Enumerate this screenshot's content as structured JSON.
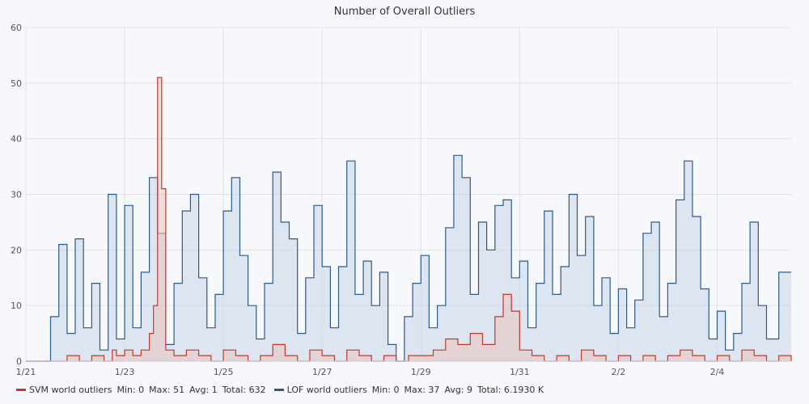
{
  "chart_data": {
    "type": "area",
    "title": "Number of Overall Outliers",
    "xlabel": "",
    "ylabel": "",
    "ylim": [
      0,
      60
    ],
    "yticks": [
      0,
      10,
      20,
      30,
      40,
      50,
      60
    ],
    "xlim": [
      "2023-01-21T00:00",
      "2023-02-05T12:00"
    ],
    "xticks": [
      {
        "label": "1/21",
        "date": "2023-01-21"
      },
      {
        "label": "1/23",
        "date": "2023-01-23"
      },
      {
        "label": "1/25",
        "date": "2023-01-25"
      },
      {
        "label": "1/27",
        "date": "2023-01-27"
      },
      {
        "label": "1/29",
        "date": "2023-01-29"
      },
      {
        "label": "1/31",
        "date": "2023-01-31"
      },
      {
        "label": "2/2",
        "date": "2023-02-02"
      },
      {
        "label": "2/4",
        "date": "2023-02-04"
      }
    ],
    "grid": true,
    "legend_position": "bottom-left",
    "series": [
      {
        "name": "SVM world outliers",
        "color": "#c0392b",
        "fill": "#e9c4c0",
        "stats": {
          "min": "Min:  0",
          "max": "Max:  51",
          "avg": "Avg:  1",
          "total": "Total:  632"
        },
        "points": [
          [
            "2023-01-21T00:00",
            0
          ],
          [
            "2023-01-21T12:00",
            0
          ],
          [
            "2023-01-21T20:00",
            1
          ],
          [
            "2023-01-22T02:00",
            0
          ],
          [
            "2023-01-22T08:00",
            1
          ],
          [
            "2023-01-22T14:00",
            0
          ],
          [
            "2023-01-22T18:00",
            2
          ],
          [
            "2023-01-22T20:00",
            1
          ],
          [
            "2023-01-23T00:00",
            2
          ],
          [
            "2023-01-23T04:00",
            1
          ],
          [
            "2023-01-23T08:00",
            2
          ],
          [
            "2023-01-23T12:00",
            5
          ],
          [
            "2023-01-23T14:00",
            10
          ],
          [
            "2023-01-23T16:00",
            51
          ],
          [
            "2023-01-23T18:00",
            31
          ],
          [
            "2023-01-23T20:00",
            2
          ],
          [
            "2023-01-24T00:00",
            1
          ],
          [
            "2023-01-24T06:00",
            2
          ],
          [
            "2023-01-24T12:00",
            1
          ],
          [
            "2023-01-24T18:00",
            0
          ],
          [
            "2023-01-25T00:00",
            2
          ],
          [
            "2023-01-25T06:00",
            1
          ],
          [
            "2023-01-25T12:00",
            0
          ],
          [
            "2023-01-25T18:00",
            1
          ],
          [
            "2023-01-26T00:00",
            3
          ],
          [
            "2023-01-26T06:00",
            1
          ],
          [
            "2023-01-26T12:00",
            0
          ],
          [
            "2023-01-26T18:00",
            2
          ],
          [
            "2023-01-27T00:00",
            1
          ],
          [
            "2023-01-27T06:00",
            0
          ],
          [
            "2023-01-27T12:00",
            2
          ],
          [
            "2023-01-27T18:00",
            1
          ],
          [
            "2023-01-28T00:00",
            0
          ],
          [
            "2023-01-28T06:00",
            1
          ],
          [
            "2023-01-28T12:00",
            0
          ],
          [
            "2023-01-28T18:00",
            1
          ],
          [
            "2023-01-29T00:00",
            1
          ],
          [
            "2023-01-29T06:00",
            2
          ],
          [
            "2023-01-29T12:00",
            4
          ],
          [
            "2023-01-29T18:00",
            3
          ],
          [
            "2023-01-30T00:00",
            5
          ],
          [
            "2023-01-30T06:00",
            3
          ],
          [
            "2023-01-30T12:00",
            8
          ],
          [
            "2023-01-30T16:00",
            12
          ],
          [
            "2023-01-30T20:00",
            9
          ],
          [
            "2023-01-31T00:00",
            2
          ],
          [
            "2023-01-31T06:00",
            1
          ],
          [
            "2023-01-31T12:00",
            0
          ],
          [
            "2023-01-31T18:00",
            1
          ],
          [
            "2023-02-01T00:00",
            0
          ],
          [
            "2023-02-01T06:00",
            2
          ],
          [
            "2023-02-01T12:00",
            1
          ],
          [
            "2023-02-01T18:00",
            0
          ],
          [
            "2023-02-02T00:00",
            1
          ],
          [
            "2023-02-02T06:00",
            0
          ],
          [
            "2023-02-02T12:00",
            1
          ],
          [
            "2023-02-02T18:00",
            0
          ],
          [
            "2023-02-03T00:00",
            1
          ],
          [
            "2023-02-03T06:00",
            2
          ],
          [
            "2023-02-03T12:00",
            1
          ],
          [
            "2023-02-03T18:00",
            0
          ],
          [
            "2023-02-04T00:00",
            1
          ],
          [
            "2023-02-04T06:00",
            0
          ],
          [
            "2023-02-04T12:00",
            2
          ],
          [
            "2023-02-04T18:00",
            1
          ],
          [
            "2023-02-05T00:00",
            0
          ],
          [
            "2023-02-05T06:00",
            1
          ],
          [
            "2023-02-05T12:00",
            0
          ]
        ]
      },
      {
        "name": "LOF world outliers",
        "color": "#2c5a8a",
        "fill": "#c9d6e6",
        "stats": {
          "min": "Min:  0",
          "max": "Max:  37",
          "avg": "Avg:  9",
          "total": "Total:  6.1930 K"
        },
        "points": [
          [
            "2023-01-21T00:00",
            0
          ],
          [
            "2023-01-21T06:00",
            0
          ],
          [
            "2023-01-21T12:00",
            8
          ],
          [
            "2023-01-21T16:00",
            21
          ],
          [
            "2023-01-21T20:00",
            5
          ],
          [
            "2023-01-22T00:00",
            22
          ],
          [
            "2023-01-22T04:00",
            6
          ],
          [
            "2023-01-22T08:00",
            14
          ],
          [
            "2023-01-22T12:00",
            2
          ],
          [
            "2023-01-22T16:00",
            30
          ],
          [
            "2023-01-22T20:00",
            4
          ],
          [
            "2023-01-23T00:00",
            28
          ],
          [
            "2023-01-23T04:00",
            6
          ],
          [
            "2023-01-23T08:00",
            16
          ],
          [
            "2023-01-23T12:00",
            33
          ],
          [
            "2023-01-23T16:00",
            23
          ],
          [
            "2023-01-23T20:00",
            3
          ],
          [
            "2023-01-24T00:00",
            14
          ],
          [
            "2023-01-24T04:00",
            27
          ],
          [
            "2023-01-24T08:00",
            30
          ],
          [
            "2023-01-24T12:00",
            15
          ],
          [
            "2023-01-24T16:00",
            6
          ],
          [
            "2023-01-24T20:00",
            12
          ],
          [
            "2023-01-25T00:00",
            27
          ],
          [
            "2023-01-25T04:00",
            33
          ],
          [
            "2023-01-25T08:00",
            19
          ],
          [
            "2023-01-25T12:00",
            10
          ],
          [
            "2023-01-25T16:00",
            4
          ],
          [
            "2023-01-25T20:00",
            14
          ],
          [
            "2023-01-26T00:00",
            34
          ],
          [
            "2023-01-26T04:00",
            25
          ],
          [
            "2023-01-26T08:00",
            22
          ],
          [
            "2023-01-26T12:00",
            5
          ],
          [
            "2023-01-26T16:00",
            15
          ],
          [
            "2023-01-26T20:00",
            28
          ],
          [
            "2023-01-27T00:00",
            17
          ],
          [
            "2023-01-27T04:00",
            6
          ],
          [
            "2023-01-27T08:00",
            17
          ],
          [
            "2023-01-27T12:00",
            36
          ],
          [
            "2023-01-27T16:00",
            12
          ],
          [
            "2023-01-27T20:00",
            18
          ],
          [
            "2023-01-28T00:00",
            10
          ],
          [
            "2023-01-28T04:00",
            16
          ],
          [
            "2023-01-28T08:00",
            3
          ],
          [
            "2023-01-28T12:00",
            0
          ],
          [
            "2023-01-28T16:00",
            8
          ],
          [
            "2023-01-28T20:00",
            14
          ],
          [
            "2023-01-29T00:00",
            19
          ],
          [
            "2023-01-29T04:00",
            6
          ],
          [
            "2023-01-29T08:00",
            10
          ],
          [
            "2023-01-29T12:00",
            24
          ],
          [
            "2023-01-29T16:00",
            37
          ],
          [
            "2023-01-29T20:00",
            33
          ],
          [
            "2023-01-30T00:00",
            12
          ],
          [
            "2023-01-30T04:00",
            25
          ],
          [
            "2023-01-30T08:00",
            20
          ],
          [
            "2023-01-30T12:00",
            28
          ],
          [
            "2023-01-30T16:00",
            29
          ],
          [
            "2023-01-30T20:00",
            15
          ],
          [
            "2023-01-31T00:00",
            18
          ],
          [
            "2023-01-31T04:00",
            6
          ],
          [
            "2023-01-31T08:00",
            14
          ],
          [
            "2023-01-31T12:00",
            27
          ],
          [
            "2023-01-31T16:00",
            12
          ],
          [
            "2023-01-31T20:00",
            17
          ],
          [
            "2023-02-01T00:00",
            30
          ],
          [
            "2023-02-01T04:00",
            19
          ],
          [
            "2023-02-01T08:00",
            26
          ],
          [
            "2023-02-01T12:00",
            10
          ],
          [
            "2023-02-01T16:00",
            15
          ],
          [
            "2023-02-01T20:00",
            5
          ],
          [
            "2023-02-02T00:00",
            13
          ],
          [
            "2023-02-02T04:00",
            6
          ],
          [
            "2023-02-02T08:00",
            11
          ],
          [
            "2023-02-02T12:00",
            23
          ],
          [
            "2023-02-02T16:00",
            25
          ],
          [
            "2023-02-02T20:00",
            8
          ],
          [
            "2023-02-03T00:00",
            14
          ],
          [
            "2023-02-03T04:00",
            29
          ],
          [
            "2023-02-03T08:00",
            36
          ],
          [
            "2023-02-03T12:00",
            26
          ],
          [
            "2023-02-03T16:00",
            13
          ],
          [
            "2023-02-03T20:00",
            4
          ],
          [
            "2023-02-04T00:00",
            9
          ],
          [
            "2023-02-04T04:00",
            2
          ],
          [
            "2023-02-04T08:00",
            5
          ],
          [
            "2023-02-04T12:00",
            14
          ],
          [
            "2023-02-04T16:00",
            25
          ],
          [
            "2023-02-04T20:00",
            10
          ],
          [
            "2023-02-05T00:00",
            4
          ],
          [
            "2023-02-05T06:00",
            16
          ],
          [
            "2023-02-05T12:00",
            16
          ]
        ]
      }
    ]
  }
}
